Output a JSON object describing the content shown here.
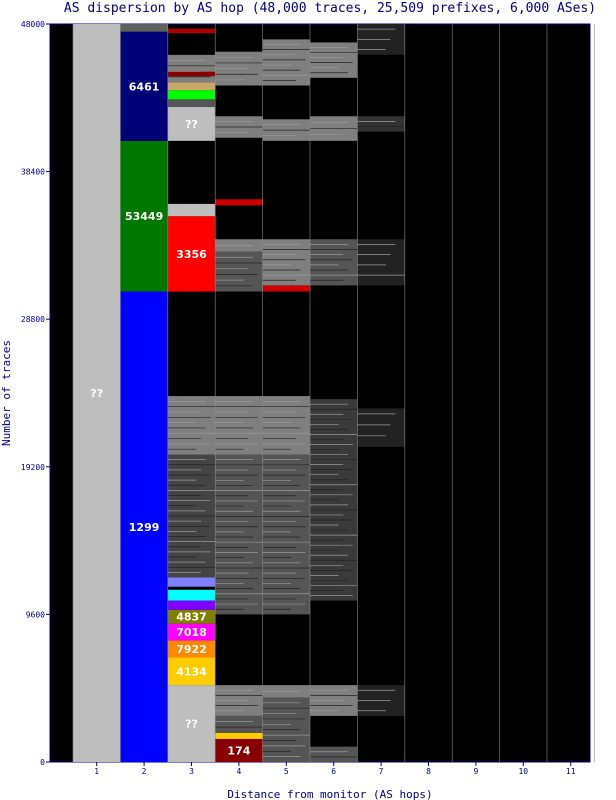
{
  "chart_data": {
    "type": "bar",
    "title": "AS dispersion by AS hop (48,000 traces, 25,509 prefixes, 6,000 ASes)",
    "xlabel": "Distance from monitor (AS hops)",
    "ylabel": "Number of traces",
    "categories": [
      "1",
      "2",
      "3",
      "4",
      "5",
      "6",
      "7",
      "8",
      "9",
      "10",
      "11"
    ],
    "ylim": [
      0,
      48000
    ],
    "yticks": [
      "0",
      "9600",
      "19200",
      "28800",
      "38400",
      "48000"
    ],
    "background_color": "#000000",
    "segments": [
      {
        "hop": 1,
        "y0": 0,
        "y1": 48000,
        "color": "#bebebe",
        "label": "??"
      },
      {
        "hop": 2,
        "y0": 0,
        "y1": 30600,
        "color": "#0000ff",
        "label": "1299"
      },
      {
        "hop": 2,
        "y0": 30600,
        "y1": 40400,
        "color": "#007700",
        "label": "53449"
      },
      {
        "hop": 2,
        "y0": 40400,
        "y1": 47500,
        "color": "#000077",
        "label": "6461"
      },
      {
        "hop": 2,
        "y0": 47500,
        "y1": 48000,
        "color": "#606060",
        "label": ""
      },
      {
        "hop": 3,
        "y0": 0,
        "y1": 5000,
        "color": "#bebebe",
        "label": "??"
      },
      {
        "hop": 3,
        "y0": 5000,
        "y1": 6800,
        "color": "#ffcc00",
        "label": "4134"
      },
      {
        "hop": 3,
        "y0": 6800,
        "y1": 7900,
        "color": "#ff8800",
        "label": "7922"
      },
      {
        "hop": 3,
        "y0": 7900,
        "y1": 9000,
        "color": "#ff00ff",
        "label": "7018"
      },
      {
        "hop": 3,
        "y0": 9000,
        "y1": 9900,
        "color": "#808000",
        "label": "4837"
      },
      {
        "hop": 3,
        "y0": 9900,
        "y1": 10500,
        "color": "#8000ff",
        "label": ""
      },
      {
        "hop": 3,
        "y0": 10500,
        "y1": 11200,
        "color": "#00ffff",
        "label": ""
      },
      {
        "hop": 3,
        "y0": 11400,
        "y1": 12000,
        "color": "#8080ff",
        "label": ""
      },
      {
        "hop": 3,
        "y0": 15200,
        "y1": 15600,
        "color": "#00ff00",
        "label": ""
      },
      {
        "hop": 3,
        "y0": 12000,
        "y1": 20000,
        "color": "#444444",
        "label": ""
      },
      {
        "hop": 3,
        "y0": 20000,
        "y1": 23800,
        "color": "#7f7f7f",
        "label": ""
      },
      {
        "hop": 3,
        "y0": 30600,
        "y1": 35500,
        "color": "#ff0000",
        "label": "3356"
      },
      {
        "hop": 3,
        "y0": 35500,
        "y1": 36300,
        "color": "#bebebe",
        "label": ""
      },
      {
        "hop": 3,
        "y0": 40400,
        "y1": 42600,
        "color": "#bebebe",
        "label": "??"
      },
      {
        "hop": 3,
        "y0": 42600,
        "y1": 43100,
        "color": "#555555",
        "label": ""
      },
      {
        "hop": 3,
        "y0": 43100,
        "y1": 43700,
        "color": "#00ff00",
        "label": ""
      },
      {
        "hop": 3,
        "y0": 43700,
        "y1": 44200,
        "color": "#c8a868",
        "label": ""
      },
      {
        "hop": 3,
        "y0": 44200,
        "y1": 46000,
        "color": "#7f7f7f",
        "label": ""
      },
      {
        "hop": 3,
        "y0": 44600,
        "y1": 44900,
        "color": "#880000",
        "label": ""
      },
      {
        "hop": 3,
        "y0": 46000,
        "y1": 47000,
        "color": "#000000",
        "label": ""
      },
      {
        "hop": 3,
        "y0": 47400,
        "y1": 47700,
        "color": "#aa0000",
        "label": ""
      },
      {
        "hop": 4,
        "y0": 0,
        "y1": 1500,
        "color": "#880000",
        "label": "174"
      },
      {
        "hop": 4,
        "y0": 1500,
        "y1": 1900,
        "color": "#ffcc00",
        "label": ""
      },
      {
        "hop": 4,
        "y0": 1900,
        "y1": 3000,
        "color": "#555555",
        "label": ""
      },
      {
        "hop": 4,
        "y0": 3000,
        "y1": 5000,
        "color": "#7f7f7f",
        "label": ""
      },
      {
        "hop": 4,
        "y0": 9600,
        "y1": 20000,
        "color": "#555555",
        "label": ""
      },
      {
        "hop": 4,
        "y0": 20000,
        "y1": 23800,
        "color": "#7f7f7f",
        "label": ""
      },
      {
        "hop": 4,
        "y0": 30600,
        "y1": 33200,
        "color": "#555555",
        "label": ""
      },
      {
        "hop": 4,
        "y0": 33200,
        "y1": 34000,
        "color": "#7f7f7f",
        "label": ""
      },
      {
        "hop": 4,
        "y0": 36200,
        "y1": 36600,
        "color": "#cc0000",
        "label": ""
      },
      {
        "hop": 4,
        "y0": 40600,
        "y1": 42000,
        "color": "#7f7f7f",
        "label": ""
      },
      {
        "hop": 4,
        "y0": 44000,
        "y1": 46200,
        "color": "#7f7f7f",
        "label": ""
      },
      {
        "hop": 5,
        "y0": 0,
        "y1": 4200,
        "color": "#555555",
        "label": ""
      },
      {
        "hop": 5,
        "y0": 4200,
        "y1": 5000,
        "color": "#7f7f7f",
        "label": ""
      },
      {
        "hop": 5,
        "y0": 9600,
        "y1": 20000,
        "color": "#555555",
        "label": ""
      },
      {
        "hop": 5,
        "y0": 20000,
        "y1": 23800,
        "color": "#7f7f7f",
        "label": ""
      },
      {
        "hop": 5,
        "y0": 30600,
        "y1": 31000,
        "color": "#cc0000",
        "label": ""
      },
      {
        "hop": 5,
        "y0": 31000,
        "y1": 34000,
        "color": "#7f7f7f",
        "label": ""
      },
      {
        "hop": 5,
        "y0": 40400,
        "y1": 41800,
        "color": "#7f7f7f",
        "label": ""
      },
      {
        "hop": 5,
        "y0": 44000,
        "y1": 47000,
        "color": "#7f7f7f",
        "label": ""
      },
      {
        "hop": 6,
        "y0": 0,
        "y1": 1000,
        "color": "#555555",
        "label": ""
      },
      {
        "hop": 6,
        "y0": 3000,
        "y1": 5000,
        "color": "#7f7f7f",
        "label": ""
      },
      {
        "hop": 6,
        "y0": 10500,
        "y1": 23600,
        "color": "#3a3a3a",
        "label": ""
      },
      {
        "hop": 6,
        "y0": 31000,
        "y1": 34000,
        "color": "#555555",
        "label": ""
      },
      {
        "hop": 6,
        "y0": 40400,
        "y1": 42000,
        "color": "#7f7f7f",
        "label": ""
      },
      {
        "hop": 6,
        "y0": 44500,
        "y1": 46800,
        "color": "#7f7f7f",
        "label": ""
      },
      {
        "hop": 7,
        "y0": 3000,
        "y1": 5000,
        "color": "#222222",
        "label": ""
      },
      {
        "hop": 7,
        "y0": 20500,
        "y1": 23000,
        "color": "#222222",
        "label": ""
      },
      {
        "hop": 7,
        "y0": 31000,
        "y1": 34000,
        "color": "#222222",
        "label": ""
      },
      {
        "hop": 7,
        "y0": 41000,
        "y1": 42000,
        "color": "#333333",
        "label": ""
      },
      {
        "hop": 7,
        "y0": 46000,
        "y1": 48000,
        "color": "#222222",
        "label": ""
      }
    ]
  }
}
